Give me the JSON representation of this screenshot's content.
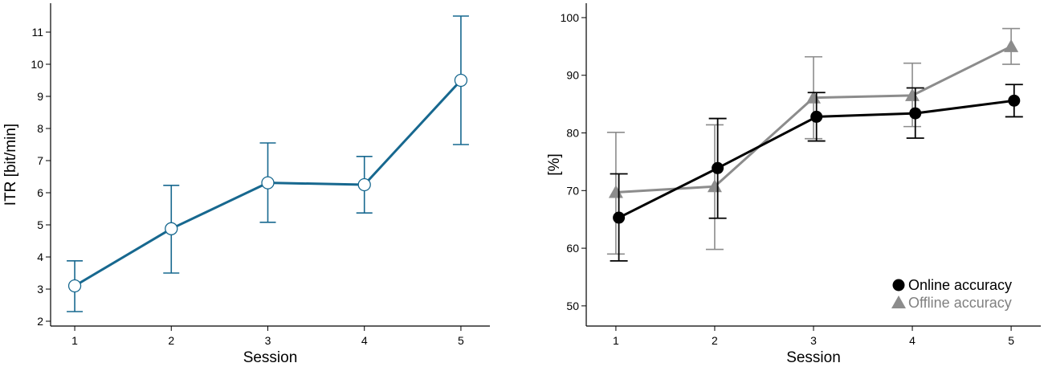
{
  "chart_data": [
    {
      "type": "line",
      "xlabel": "Session",
      "ylabel": "ITR [bit/min]",
      "x": [
        1,
        2,
        3,
        4,
        5
      ],
      "xlim": [
        0.75,
        5.3
      ],
      "ylim": [
        1.85,
        11.9
      ],
      "xticks": [
        1,
        2,
        3,
        4,
        5
      ],
      "yticks": [
        2,
        3,
        4,
        5,
        6,
        7,
        8,
        9,
        10,
        11
      ],
      "grid": false,
      "legend": "none",
      "series": [
        {
          "values": [
            3.1,
            4.88,
            6.31,
            6.25,
            9.5
          ],
          "error_low": [
            2.3,
            3.5,
            5.08,
            5.37,
            7.5
          ],
          "error_high": [
            3.88,
            6.23,
            7.55,
            7.13,
            11.5
          ],
          "color": "#17688F",
          "marker": "open-circle"
        }
      ]
    },
    {
      "type": "line",
      "xlabel": "Session",
      "ylabel": "[%]",
      "x": [
        1,
        2,
        3,
        4,
        5
      ],
      "xlim": [
        0.7,
        5.3
      ],
      "ylim": [
        46.5,
        102.5
      ],
      "xticks": [
        1,
        2,
        3,
        4,
        5
      ],
      "yticks": [
        50,
        60,
        70,
        80,
        90,
        100
      ],
      "grid": false,
      "legend": "bottom-right",
      "series": [
        {
          "name": "Offline accuracy",
          "values": [
            69.7,
            70.7,
            86.1,
            86.5,
            95.0
          ],
          "error_low": [
            59.0,
            59.8,
            79.0,
            81.1,
            91.9
          ],
          "error_high": [
            80.1,
            81.4,
            93.2,
            92.1,
            98.1
          ],
          "color": "#8c8c8c",
          "marker": "triangle"
        },
        {
          "name": "Online accuracy",
          "values": [
            65.3,
            73.9,
            82.8,
            83.4,
            85.6
          ],
          "error_low": [
            57.8,
            65.2,
            78.6,
            79.1,
            82.8
          ],
          "error_high": [
            72.9,
            82.5,
            87.0,
            87.8,
            88.4
          ],
          "color": "#000000",
          "marker": "filled-circle"
        }
      ]
    }
  ]
}
